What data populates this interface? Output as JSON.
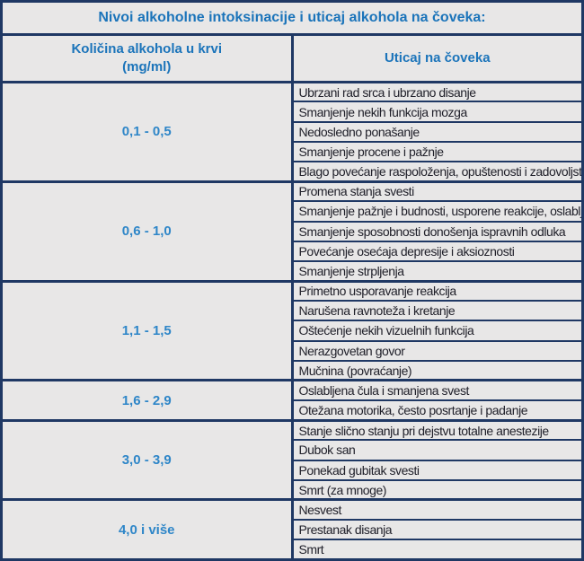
{
  "table": {
    "title": "Nivoi alkoholne intoksinacije i uticaj alkohola na čoveka:",
    "columns": {
      "range_line1": "Količina alkohola u krvi",
      "range_line2": "(mg/ml)",
      "effect": "Uticaj na čoveka"
    },
    "groups": [
      {
        "range": "0,1 - 0,5",
        "effects": [
          "Ubrzani rad srca i ubrzano disanje",
          "Smanjenje nekih funkcija mozga",
          "Nedosledno ponašanje",
          "Smanjenje procene i pažnje",
          "Blago povećanje raspoloženja, opuštenosti i zadovoljstva"
        ]
      },
      {
        "range": "0,6 - 1,0",
        "effects": [
          "Promena stanja svesti",
          "Smanjenje pažnje i budnosti, usporene reakcije, oslabljena koordinacija",
          "Smanjenje sposobnosti donošenja ispravnih odluka",
          "Povećanje osećaja depresije i aksioznosti",
          "Smanjenje strpljenja"
        ]
      },
      {
        "range": "1,1 - 1,5",
        "effects": [
          "Primetno usporavanje reakcija",
          "Narušena ravnoteža i kretanje",
          "Oštećenje nekih vizuelnih funkcija",
          "Nerazgovetan govor",
          "Mučnina (povraćanje)"
        ]
      },
      {
        "range": "1,6 - 2,9",
        "effects": [
          "Oslabljena čula i smanjena svest",
          "Otežana motorika, često posrtanje i padanje"
        ]
      },
      {
        "range": "3,0 - 3,9",
        "effects": [
          "Stanje slično stanju pri dejstvu totalne anestezije",
          "Dubok san",
          "Ponekad gubitak svesti",
          "Smrt (za mnoge)"
        ]
      },
      {
        "range": "4,0 i više",
        "effects": [
          "Nesvest",
          "Prestanak disanja",
          "Smrt"
        ]
      }
    ],
    "colors": {
      "border": "#1f3864",
      "cell_bg": "#e8e7e7",
      "title_text": "#1b74ba",
      "range_text": "#2e86c8",
      "body_text": "#20202a"
    }
  }
}
